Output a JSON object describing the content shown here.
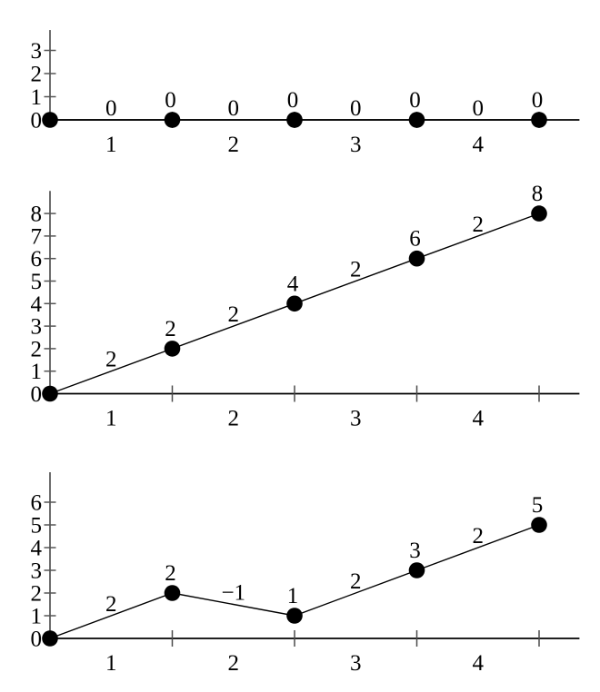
{
  "figure": {
    "background": "#ffffff",
    "foreground": "#000000",
    "num_charts": 3
  },
  "chart_data": [
    {
      "type": "line",
      "title": "",
      "xlabel": "",
      "ylabel": "",
      "x": [
        0.5,
        1.5,
        2.5,
        3.5,
        4.5
      ],
      "y": [
        0,
        0,
        0,
        0,
        0
      ],
      "point_labels": [
        null,
        "0",
        "0",
        "0",
        "0"
      ],
      "edge_labels": [
        "0",
        "0",
        "0",
        "0"
      ],
      "y_axis": {
        "ticks": [
          0,
          1,
          2,
          3
        ],
        "tick_labels": [
          "0",
          "1",
          "2",
          "3"
        ],
        "lim": [
          0,
          3.88
        ]
      },
      "x_axis": {
        "ticks": [
          1.5,
          2.5,
          3.5,
          4.5
        ],
        "interval_labels": [
          "1",
          "2",
          "3",
          "4"
        ],
        "interval_label_positions": [
          1,
          2,
          3,
          4
        ],
        "lim": [
          0.5,
          4.83
        ]
      },
      "grid": false,
      "legend": false,
      "marker": "filled-circle",
      "line_color": "#000000",
      "marker_color": "#000000",
      "text_color": "#000000"
    },
    {
      "type": "line",
      "title": "",
      "xlabel": "",
      "ylabel": "",
      "x": [
        0.5,
        1.5,
        2.5,
        3.5,
        4.5
      ],
      "y": [
        0,
        2,
        4,
        6,
        8
      ],
      "point_labels": [
        null,
        "2",
        "4",
        "6",
        "8"
      ],
      "edge_labels": [
        "2",
        "2",
        "2",
        "2"
      ],
      "y_axis": {
        "ticks": [
          0,
          1,
          2,
          3,
          4,
          5,
          6,
          7,
          8
        ],
        "tick_labels": [
          "0",
          "1",
          "2",
          "3",
          "4",
          "5",
          "6",
          "7",
          "8"
        ],
        "lim": [
          0,
          9.0
        ]
      },
      "x_axis": {
        "ticks": [
          1.5,
          2.5,
          3.5,
          4.5
        ],
        "interval_labels": [
          "1",
          "2",
          "3",
          "4"
        ],
        "interval_label_positions": [
          1,
          2,
          3,
          4
        ],
        "lim": [
          0.5,
          4.83
        ]
      },
      "grid": false,
      "legend": false,
      "marker": "filled-circle",
      "line_color": "#000000",
      "marker_color": "#000000",
      "text_color": "#000000"
    },
    {
      "type": "line",
      "title": "",
      "xlabel": "",
      "ylabel": "",
      "x": [
        0.5,
        1.5,
        2.5,
        3.5,
        4.5
      ],
      "y": [
        0,
        2,
        1,
        3,
        5
      ],
      "point_labels": [
        null,
        "2",
        "1",
        "3",
        "5"
      ],
      "edge_labels": [
        "2",
        "−1",
        "2",
        "2"
      ],
      "y_axis": {
        "ticks": [
          0,
          1,
          2,
          3,
          4,
          5,
          6
        ],
        "tick_labels": [
          "0",
          "1",
          "2",
          "3",
          "4",
          "5",
          "6"
        ],
        "lim": [
          0,
          7.32
        ]
      },
      "x_axis": {
        "ticks": [
          1.5,
          2.5,
          3.5,
          4.5
        ],
        "interval_labels": [
          "1",
          "2",
          "3",
          "4"
        ],
        "interval_label_positions": [
          1,
          2,
          3,
          4
        ],
        "lim": [
          0.5,
          4.83
        ]
      },
      "grid": false,
      "legend": false,
      "marker": "filled-circle",
      "line_color": "#000000",
      "marker_color": "#000000",
      "text_color": "#000000"
    }
  ]
}
